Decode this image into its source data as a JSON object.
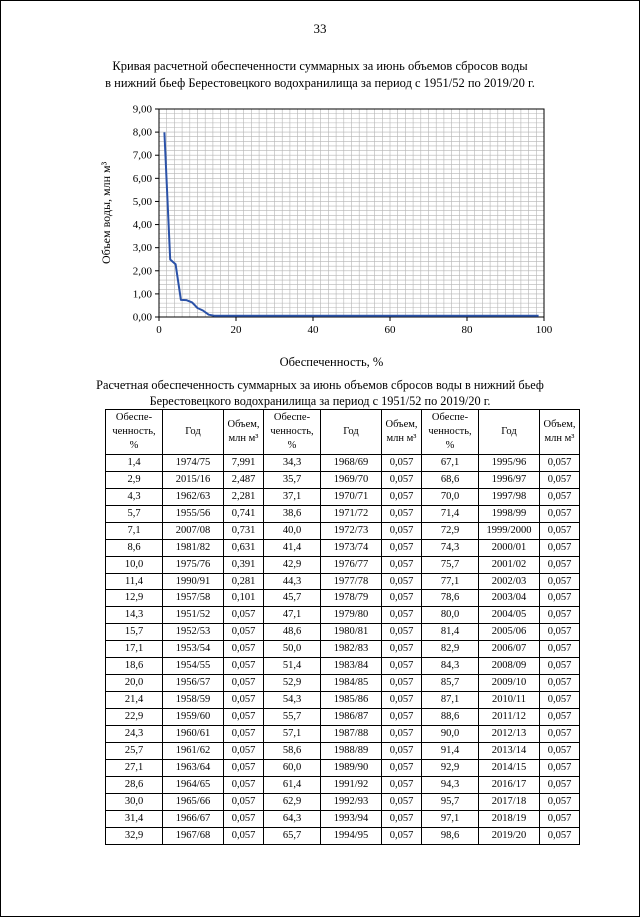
{
  "page": {
    "number": "33"
  },
  "chart": {
    "title_line1": "Кривая расчетной обеспеченности суммарных за июнь объемов сбросов воды",
    "title_line2": "в нижний бьеф Берестовецкого водохранилища за период с 1951/52 по 2019/20 г.",
    "ylabel": "Объем  воды, млн м³",
    "xlabel": "Обеспеченность, %"
  },
  "chart_data": {
    "type": "line",
    "title": "Кривая расчетной обеспеченности суммарных за июнь объемов сбросов воды в нижний бьеф Берестовецкого водохранилища за период с 1951/52 по 2019/20 г.",
    "xlabel": "Обеспеченность, %",
    "ylabel": "Объем воды, млн м³",
    "xlim": [
      0,
      100
    ],
    "ylim": [
      0,
      9
    ],
    "x_minor_step": 2,
    "y_minor_step": 0.2,
    "grid": true,
    "legend": false,
    "line_color": "#2b52a8",
    "x_ticks": [
      [
        0,
        "0"
      ],
      [
        20,
        "20"
      ],
      [
        40,
        "40"
      ],
      [
        60,
        "60"
      ],
      [
        80,
        "80"
      ],
      [
        100,
        "100"
      ]
    ],
    "y_ticks": [
      [
        9,
        "9,00"
      ],
      [
        8,
        "8,00"
      ],
      [
        7,
        "7,00"
      ],
      [
        6,
        "6,00"
      ],
      [
        5,
        "5,00"
      ],
      [
        4,
        "4,00"
      ],
      [
        3,
        "3,00"
      ],
      [
        2,
        "2,00"
      ],
      [
        1,
        "1,00"
      ],
      [
        0,
        "0,00"
      ]
    ],
    "x": [
      1.4,
      2.9,
      4.3,
      5.7,
      7.1,
      8.6,
      10.0,
      11.4,
      12.9,
      14.3,
      15.7,
      17.1,
      18.6,
      20.0,
      21.4,
      22.9,
      24.3,
      25.7,
      27.1,
      28.6,
      30.0,
      31.4,
      32.9,
      34.3,
      35.7,
      37.1,
      38.6,
      40.0,
      41.4,
      42.9,
      44.3,
      45.7,
      47.1,
      48.6,
      50.0,
      51.4,
      52.9,
      54.3,
      55.7,
      57.1,
      58.6,
      60.0,
      61.4,
      62.9,
      64.3,
      65.7,
      67.1,
      68.6,
      70.0,
      71.4,
      72.9,
      74.3,
      75.7,
      77.1,
      78.6,
      80.0,
      81.4,
      82.9,
      84.3,
      85.7,
      87.1,
      88.6,
      90.0,
      91.4,
      92.9,
      94.3,
      95.7,
      97.1,
      98.6
    ],
    "y": [
      7.991,
      2.487,
      2.281,
      0.741,
      0.731,
      0.631,
      0.391,
      0.281,
      0.101,
      0.057,
      0.057,
      0.057,
      0.057,
      0.057,
      0.057,
      0.057,
      0.057,
      0.057,
      0.057,
      0.057,
      0.057,
      0.057,
      0.057,
      0.057,
      0.057,
      0.057,
      0.057,
      0.057,
      0.057,
      0.057,
      0.057,
      0.057,
      0.057,
      0.057,
      0.057,
      0.057,
      0.057,
      0.057,
      0.057,
      0.057,
      0.057,
      0.057,
      0.057,
      0.057,
      0.057,
      0.057,
      0.057,
      0.057,
      0.057,
      0.057,
      0.057,
      0.057,
      0.057,
      0.057,
      0.057,
      0.057,
      0.057,
      0.057,
      0.057,
      0.057,
      0.057,
      0.057,
      0.057,
      0.057,
      0.057,
      0.057,
      0.057,
      0.057,
      0.057
    ]
  },
  "table": {
    "title_line1": "Расчетная обеспеченность суммарных за июнь объемов сбросов воды в нижний бьеф",
    "title_line2": "Берестовецкого водохранилища за период с 1951/52 по 2019/20 г.",
    "header": {
      "probability": "Обеспе-\nченность,\n%",
      "year": "Год",
      "volume": "Объем,\nмлн м³"
    },
    "rows": [
      [
        "1,4",
        "1974/75",
        "7,991",
        "34,3",
        "1968/69",
        "0,057",
        "67,1",
        "1995/96",
        "0,057"
      ],
      [
        "2,9",
        "2015/16",
        "2,487",
        "35,7",
        "1969/70",
        "0,057",
        "68,6",
        "1996/97",
        "0,057"
      ],
      [
        "4,3",
        "1962/63",
        "2,281",
        "37,1",
        "1970/71",
        "0,057",
        "70,0",
        "1997/98",
        "0,057"
      ],
      [
        "5,7",
        "1955/56",
        "0,741",
        "38,6",
        "1971/72",
        "0,057",
        "71,4",
        "1998/99",
        "0,057"
      ],
      [
        "7,1",
        "2007/08",
        "0,731",
        "40,0",
        "1972/73",
        "0,057",
        "72,9",
        "1999/2000",
        "0,057"
      ],
      [
        "8,6",
        "1981/82",
        "0,631",
        "41,4",
        "1973/74",
        "0,057",
        "74,3",
        "2000/01",
        "0,057"
      ],
      [
        "10,0",
        "1975/76",
        "0,391",
        "42,9",
        "1976/77",
        "0,057",
        "75,7",
        "2001/02",
        "0,057"
      ],
      [
        "11,4",
        "1990/91",
        "0,281",
        "44,3",
        "1977/78",
        "0,057",
        "77,1",
        "2002/03",
        "0,057"
      ],
      [
        "12,9",
        "1957/58",
        "0,101",
        "45,7",
        "1978/79",
        "0,057",
        "78,6",
        "2003/04",
        "0,057"
      ],
      [
        "14,3",
        "1951/52",
        "0,057",
        "47,1",
        "1979/80",
        "0,057",
        "80,0",
        "2004/05",
        "0,057"
      ],
      [
        "15,7",
        "1952/53",
        "0,057",
        "48,6",
        "1980/81",
        "0,057",
        "81,4",
        "2005/06",
        "0,057"
      ],
      [
        "17,1",
        "1953/54",
        "0,057",
        "50,0",
        "1982/83",
        "0,057",
        "82,9",
        "2006/07",
        "0,057"
      ],
      [
        "18,6",
        "1954/55",
        "0,057",
        "51,4",
        "1983/84",
        "0,057",
        "84,3",
        "2008/09",
        "0,057"
      ],
      [
        "20,0",
        "1956/57",
        "0,057",
        "52,9",
        "1984/85",
        "0,057",
        "85,7",
        "2009/10",
        "0,057"
      ],
      [
        "21,4",
        "1958/59",
        "0,057",
        "54,3",
        "1985/86",
        "0,057",
        "87,1",
        "2010/11",
        "0,057"
      ],
      [
        "22,9",
        "1959/60",
        "0,057",
        "55,7",
        "1986/87",
        "0,057",
        "88,6",
        "2011/12",
        "0,057"
      ],
      [
        "24,3",
        "1960/61",
        "0,057",
        "57,1",
        "1987/88",
        "0,057",
        "90,0",
        "2012/13",
        "0,057"
      ],
      [
        "25,7",
        "1961/62",
        "0,057",
        "58,6",
        "1988/89",
        "0,057",
        "91,4",
        "2013/14",
        "0,057"
      ],
      [
        "27,1",
        "1963/64",
        "0,057",
        "60,0",
        "1989/90",
        "0,057",
        "92,9",
        "2014/15",
        "0,057"
      ],
      [
        "28,6",
        "1964/65",
        "0,057",
        "61,4",
        "1991/92",
        "0,057",
        "94,3",
        "2016/17",
        "0,057"
      ],
      [
        "30,0",
        "1965/66",
        "0,057",
        "62,9",
        "1992/93",
        "0,057",
        "95,7",
        "2017/18",
        "0,057"
      ],
      [
        "31,4",
        "1966/67",
        "0,057",
        "64,3",
        "1993/94",
        "0,057",
        "97,1",
        "2018/19",
        "0,057"
      ],
      [
        "32,9",
        "1967/68",
        "0,057",
        "65,7",
        "1994/95",
        "0,057",
        "98,6",
        "2019/20",
        "0,057"
      ]
    ]
  }
}
